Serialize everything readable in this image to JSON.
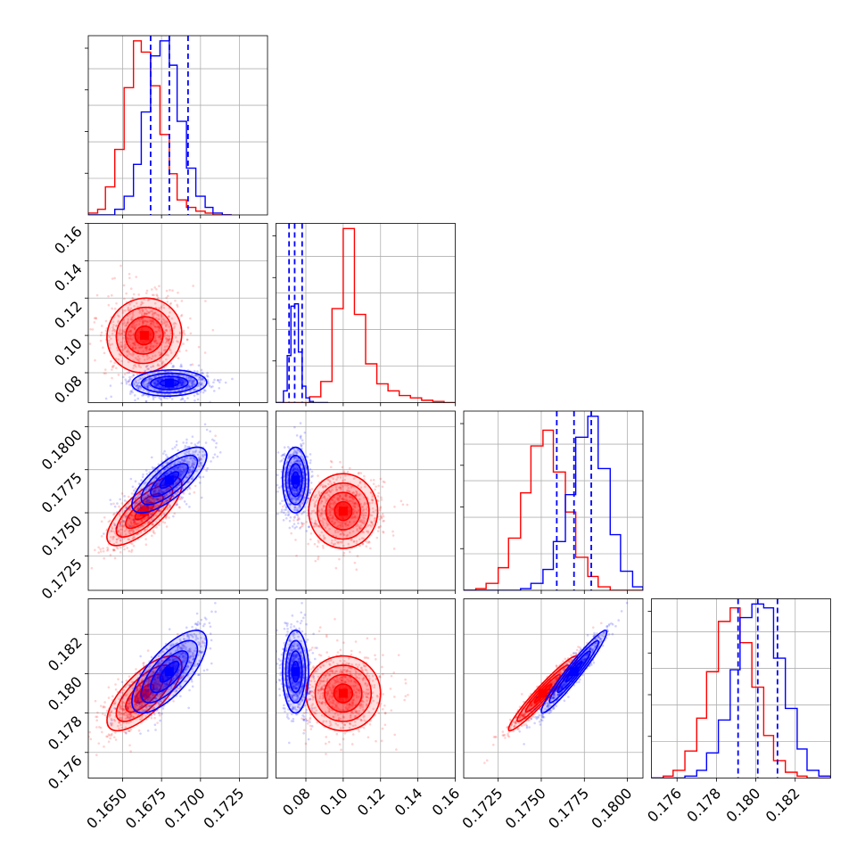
{
  "chart_data": {
    "type": "corner",
    "grid": true,
    "parameters": [
      {
        "range": [
          0.1628,
          0.1743
        ],
        "ticks": [
          0.165,
          0.1675,
          0.17,
          0.1725
        ],
        "tick_labels": [
          "0.1650",
          "0.1675",
          "0.1700",
          "0.1725"
        ]
      },
      {
        "range": [
          0.064,
          0.16
        ],
        "ticks": [
          0.08,
          0.1,
          0.12,
          0.14,
          0.16
        ],
        "tick_labels": [
          "0.08",
          "0.10",
          "0.12",
          "0.14",
          "0.16"
        ]
      },
      {
        "range": [
          0.1705,
          0.1809
        ],
        "ticks": [
          0.1725,
          0.175,
          0.1775,
          0.18
        ],
        "tick_labels": [
          "0.1725",
          "0.1750",
          "0.1775",
          "0.1800"
        ]
      },
      {
        "range": [
          0.1747,
          0.1838
        ],
        "ticks": [
          0.176,
          0.178,
          0.18,
          0.182
        ],
        "tick_labels": [
          "0.176",
          "0.178",
          "0.180",
          "0.182"
        ]
      }
    ],
    "series": [
      {
        "color": "#ff0000",
        "mean": [
          0.1664,
          0.1,
          0.1751,
          0.179
        ],
        "std": [
          0.0012,
          0.01,
          0.001,
          0.00095
        ],
        "corr": [
          [
            0,
            2,
            0.75
          ],
          [
            0,
            3,
            0.72
          ],
          [
            2,
            3,
            0.96
          ],
          [
            0,
            1,
            0.05
          ],
          [
            1,
            2,
            0.0
          ],
          [
            1,
            3,
            0.0
          ]
        ],
        "histograms": [
          {
            "bin_edges": [
              0.1628,
              0.1634,
              0.1639,
              0.1645,
              0.1651,
              0.1657,
              0.1662,
              0.1668,
              0.1674,
              0.168,
              0.1685,
              0.1691,
              0.1697,
              0.1703,
              0.1708,
              0.1714,
              0.172
            ],
            "counts": [
              1,
              3,
              15,
              35,
              68,
              93,
              87,
              69,
              43,
              22,
              8,
              4,
              2,
              1,
              0,
              0
            ]
          },
          {
            "bin_edges": [
              0.064,
              0.07,
              0.076,
              0.082,
              0.088,
              0.094,
              0.1,
              0.106,
              0.112,
              0.118,
              0.124,
              0.13,
              0.136,
              0.142,
              0.148,
              0.154,
              0.16
            ],
            "counts": [
              0,
              0,
              0,
              5,
              18,
              80,
              148,
              75,
              33,
              16,
              10,
              6,
              4,
              2,
              1,
              0
            ]
          },
          {
            "bin_edges": [
              0.1705,
              0.1712,
              0.1718,
              0.1725,
              0.1731,
              0.1738,
              0.1744,
              0.1751,
              0.1757,
              0.1764,
              0.177,
              0.1777,
              0.1783,
              0.179,
              0.1796,
              0.1803,
              0.1809
            ],
            "counts": [
              0,
              1,
              4,
              13,
              30,
              56,
              83,
              92,
              68,
              45,
              19,
              8,
              2,
              0,
              0,
              0
            ]
          },
          {
            "bin_edges": [
              0.1747,
              0.1753,
              0.1758,
              0.1764,
              0.177,
              0.1775,
              0.1781,
              0.1787,
              0.1792,
              0.1798,
              0.1804,
              0.1809,
              0.1815,
              0.1821,
              0.1826,
              0.1832,
              0.1838
            ],
            "counts": [
              0,
              1,
              4,
              14,
              31,
              55,
              81,
              88,
              70,
              47,
              22,
              9,
              3,
              1,
              0,
              0
            ]
          }
        ]
      },
      {
        "color": "#0000ff",
        "mean": [
          0.168,
          0.0745,
          0.1769,
          0.1801
        ],
        "std": [
          0.0012,
          0.0035,
          0.00095,
          0.00105
        ],
        "corr": [
          [
            0,
            2,
            0.75
          ],
          [
            0,
            3,
            0.72
          ],
          [
            2,
            3,
            0.96
          ],
          [
            0,
            1,
            0.05
          ],
          [
            1,
            2,
            0.0
          ],
          [
            1,
            3,
            0.0
          ]
        ],
        "quantiles": [
          [
            0.1668,
            0.168,
            0.1692
          ],
          [
            0.071,
            0.074,
            0.078
          ],
          [
            0.1759,
            0.1769,
            0.1779
          ],
          [
            0.1791,
            0.1801,
            0.1811
          ]
        ],
        "histograms": [
          {
            "bin_edges": [
              0.1628,
              0.1634,
              0.1639,
              0.1645,
              0.1651,
              0.1657,
              0.1662,
              0.1668,
              0.1674,
              0.168,
              0.1685,
              0.1691,
              0.1697,
              0.1703,
              0.1708,
              0.1714,
              0.172
            ],
            "counts": [
              0,
              0,
              0,
              3,
              10,
              27,
              55,
              85,
              93,
              80,
              50,
              25,
              10,
              4,
              1,
              0
            ]
          },
          {
            "bin_edges": [
              0.064,
              0.066,
              0.068,
              0.07,
              0.072,
              0.074,
              0.076,
              0.078,
              0.08,
              0.082,
              0.084,
              0.086,
              0.088,
              0.09,
              0.092
            ],
            "counts": [
              0,
              0,
              10,
              40,
              82,
              84,
              43,
              14,
              4,
              1,
              0,
              0,
              0,
              0
            ]
          },
          {
            "bin_edges": [
              0.1705,
              0.1712,
              0.1718,
              0.1725,
              0.1731,
              0.1738,
              0.1744,
              0.1751,
              0.1757,
              0.1764,
              0.177,
              0.1777,
              0.1783,
              0.179,
              0.1796,
              0.1803,
              0.1809
            ],
            "counts": [
              0,
              0,
              0,
              0,
              0,
              1,
              4,
              12,
              28,
              55,
              88,
              100,
              70,
              32,
              11,
              2
            ]
          },
          {
            "bin_edges": [
              0.1747,
              0.1753,
              0.1758,
              0.1764,
              0.177,
              0.1775,
              0.1781,
              0.1787,
              0.1792,
              0.1798,
              0.1804,
              0.1809,
              0.1815,
              0.1821,
              0.1826,
              0.1832,
              0.1838
            ],
            "counts": [
              0,
              0,
              0,
              1,
              4,
              13,
              30,
              56,
              83,
              90,
              88,
              62,
              36,
              15,
              4,
              1
            ]
          }
        ]
      }
    ]
  }
}
